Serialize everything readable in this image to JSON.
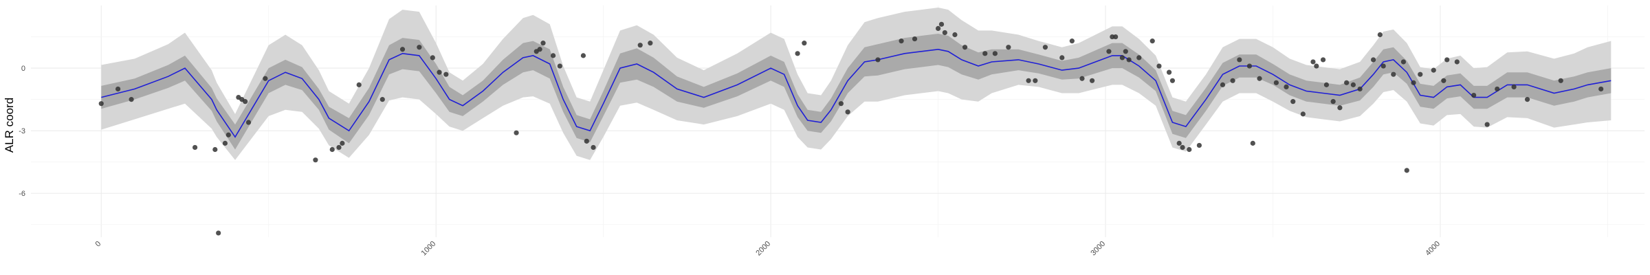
{
  "chart_data": {
    "type": "line",
    "title": "",
    "xlabel": "",
    "ylabel": "ALR coord",
    "xlim": [
      -210,
      4610
    ],
    "ylim": [
      -8.1,
      3.0
    ],
    "grid": true,
    "x_ticks": [
      0,
      1000,
      2000,
      3000,
      4000
    ],
    "x_tick_labels": [
      "0",
      "1000",
      "2000",
      "3000",
      "4000"
    ],
    "y_ticks": [
      -6,
      -3,
      0
    ],
    "y_tick_labels": [
      "-6",
      "-3",
      "0"
    ],
    "colors": {
      "line": "#1f1fd6",
      "inner_band": "#aaaaaa",
      "outer_band": "#d6d6d6",
      "points": "#333333",
      "grid_major": "#ebebeb",
      "grid_minor": "#f4f4f4"
    },
    "fit": {
      "x": [
        0,
        100,
        200,
        250,
        330,
        345,
        400,
        500,
        550,
        600,
        650,
        680,
        740,
        800,
        860,
        900,
        950,
        1000,
        1040,
        1080,
        1140,
        1200,
        1260,
        1290,
        1340,
        1380,
        1420,
        1460,
        1500,
        1550,
        1600,
        1650,
        1720,
        1800,
        1900,
        2000,
        2040,
        2080,
        2110,
        2150,
        2180,
        2230,
        2280,
        2320,
        2400,
        2450,
        2500,
        2530,
        2570,
        2620,
        2660,
        2740,
        2800,
        2870,
        2920,
        2970,
        3020,
        3050,
        3100,
        3150,
        3200,
        3240,
        3300,
        3350,
        3400,
        3450,
        3500,
        3550,
        3600,
        3650,
        3700,
        3760,
        3800,
        3830,
        3860,
        3900,
        3940,
        3980,
        4020,
        4060,
        4100,
        4140,
        4200,
        4260,
        4340,
        4400,
        4440,
        4510
      ],
      "y": [
        -1.4,
        -1.0,
        -0.4,
        0.0,
        -1.5,
        -2.0,
        -3.3,
        -0.6,
        -0.2,
        -0.5,
        -1.5,
        -2.4,
        -3.0,
        -1.6,
        0.4,
        0.7,
        0.6,
        -0.5,
        -1.5,
        -1.8,
        -1.1,
        -0.2,
        0.5,
        0.6,
        0.2,
        -1.5,
        -2.8,
        -3.0,
        -1.7,
        0.0,
        0.2,
        -0.2,
        -1.0,
        -1.4,
        -0.8,
        0.0,
        -0.3,
        -1.8,
        -2.5,
        -2.6,
        -2.0,
        -0.6,
        0.3,
        0.4,
        0.7,
        0.8,
        0.9,
        0.8,
        0.4,
        0.1,
        0.3,
        0.4,
        0.2,
        -0.1,
        0.0,
        0.3,
        0.6,
        0.6,
        0.1,
        -0.6,
        -2.6,
        -2.8,
        -1.5,
        -0.3,
        0.1,
        0.1,
        -0.3,
        -0.8,
        -1.1,
        -1.2,
        -1.3,
        -1.0,
        -0.3,
        0.3,
        0.4,
        -0.2,
        -1.3,
        -1.4,
        -0.9,
        -0.8,
        -1.4,
        -1.4,
        -0.8,
        -0.8,
        -1.2,
        -1.0,
        -0.8,
        -0.6
      ],
      "inner_halfwidth": [
        0.55,
        0.5,
        0.55,
        0.6,
        0.55,
        0.55,
        0.6,
        0.6,
        0.6,
        0.55,
        0.5,
        0.55,
        0.6,
        0.65,
        0.7,
        0.75,
        0.75,
        0.7,
        0.6,
        0.5,
        0.5,
        0.6,
        0.7,
        0.7,
        0.7,
        0.6,
        0.55,
        0.55,
        0.6,
        0.7,
        0.75,
        0.7,
        0.6,
        0.5,
        0.55,
        0.6,
        0.6,
        0.55,
        0.5,
        0.5,
        0.55,
        0.6,
        0.7,
        0.75,
        0.75,
        0.75,
        0.75,
        0.75,
        0.7,
        0.65,
        0.6,
        0.5,
        0.45,
        0.45,
        0.5,
        0.55,
        0.6,
        0.6,
        0.55,
        0.5,
        0.55,
        0.55,
        0.55,
        0.55,
        0.55,
        0.55,
        0.5,
        0.5,
        0.5,
        0.5,
        0.5,
        0.55,
        0.6,
        0.6,
        0.6,
        0.55,
        0.55,
        0.55,
        0.55,
        0.55,
        0.55,
        0.55,
        0.6,
        0.6,
        0.6,
        0.6,
        0.6,
        0.6
      ],
      "outer_halfwidth": [
        1.55,
        1.45,
        1.55,
        1.7,
        1.4,
        1.3,
        1.1,
        1.7,
        1.8,
        1.6,
        1.4,
        1.3,
        1.3,
        1.6,
        1.95,
        2.1,
        2.1,
        1.7,
        1.3,
        1.2,
        1.3,
        1.6,
        1.9,
        1.95,
        1.9,
        1.6,
        1.4,
        1.4,
        1.6,
        1.8,
        1.85,
        1.8,
        1.5,
        1.3,
        1.5,
        1.7,
        1.7,
        1.5,
        1.3,
        1.3,
        1.4,
        1.7,
        1.9,
        2.0,
        2.0,
        2.0,
        2.0,
        2.0,
        1.9,
        1.7,
        1.5,
        1.2,
        1.1,
        1.1,
        1.2,
        1.3,
        1.4,
        1.4,
        1.3,
        1.2,
        1.2,
        1.2,
        1.2,
        1.3,
        1.3,
        1.3,
        1.3,
        1.25,
        1.25,
        1.25,
        1.25,
        1.3,
        1.4,
        1.45,
        1.45,
        1.4,
        1.35,
        1.35,
        1.35,
        1.4,
        1.4,
        1.45,
        1.55,
        1.6,
        1.65,
        1.7,
        1.8,
        1.9
      ]
    },
    "points": {
      "x": [
        0,
        50,
        90,
        280,
        340,
        350,
        370,
        380,
        410,
        420,
        430,
        440,
        490,
        640,
        690,
        710,
        720,
        770,
        840,
        900,
        950,
        990,
        1010,
        1030,
        1240,
        1300,
        1310,
        1320,
        1350,
        1370,
        1440,
        1450,
        1470,
        1610,
        1640,
        2080,
        2100,
        2210,
        2230,
        2320,
        2390,
        2430,
        2500,
        2510,
        2520,
        2550,
        2580,
        2640,
        2670,
        2710,
        2770,
        2790,
        2820,
        2870,
        2900,
        2930,
        2960,
        3010,
        3020,
        3030,
        3050,
        3060,
        3070,
        3100,
        3140,
        3160,
        3190,
        3200,
        3220,
        3230,
        3250,
        3280,
        3350,
        3380,
        3400,
        3430,
        3440,
        3460,
        3510,
        3540,
        3560,
        3590,
        3620,
        3630,
        3650,
        3660,
        3680,
        3700,
        3720,
        3740,
        3760,
        3800,
        3820,
        3830,
        3860,
        3890,
        3900,
        3920,
        3940,
        3980,
        4010,
        4020,
        4050,
        4100,
        4140,
        4170,
        4220,
        4260,
        4360,
        4480
      ],
      "y": [
        -1.7,
        -1.0,
        -1.5,
        -3.8,
        -3.9,
        -7.9,
        -3.6,
        -3.2,
        -1.4,
        -1.5,
        -1.6,
        -2.6,
        -0.5,
        -4.4,
        -3.9,
        -3.8,
        -3.6,
        -0.8,
        -1.5,
        0.9,
        1.0,
        0.5,
        -0.2,
        -0.3,
        -3.1,
        0.8,
        0.9,
        1.2,
        0.6,
        0.1,
        0.6,
        -3.5,
        -3.8,
        1.1,
        1.2,
        0.7,
        1.2,
        -1.7,
        -2.1,
        0.4,
        1.3,
        1.4,
        1.9,
        2.1,
        1.7,
        1.6,
        1.0,
        0.7,
        0.7,
        1.0,
        -0.6,
        -0.6,
        1.0,
        0.5,
        1.3,
        -0.5,
        -0.6,
        0.8,
        1.5,
        1.5,
        0.5,
        0.8,
        0.4,
        0.5,
        1.3,
        0.1,
        -0.2,
        -0.6,
        -3.6,
        -3.8,
        -3.9,
        -3.7,
        -0.8,
        -0.6,
        0.4,
        0.1,
        -3.6,
        -0.5,
        -0.7,
        -0.9,
        -1.6,
        -2.2,
        0.3,
        0.1,
        0.4,
        -0.8,
        -1.6,
        -1.9,
        -0.7,
        -0.8,
        -1.0,
        0.4,
        1.6,
        0.1,
        -0.3,
        0.3,
        -4.9,
        -0.7,
        -0.3,
        -0.1,
        -0.6,
        0.4,
        0.3,
        -1.3,
        -2.7,
        -1.0,
        -0.9,
        -1.5,
        -0.6,
        -1.0
      ]
    }
  }
}
